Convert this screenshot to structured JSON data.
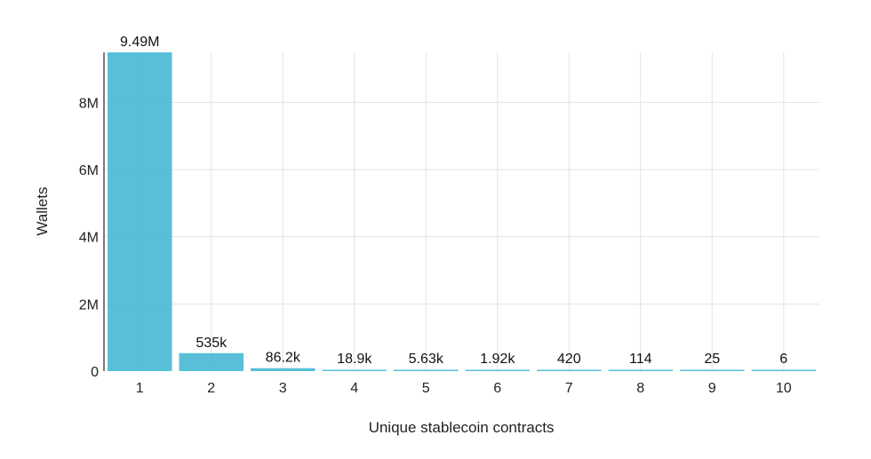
{
  "chart_data": {
    "type": "bar",
    "title": "",
    "xlabel": "Unique stablecoin contracts",
    "ylabel": "Wallets",
    "categories": [
      "1",
      "2",
      "3",
      "4",
      "5",
      "6",
      "7",
      "8",
      "9",
      "10"
    ],
    "values": [
      9490000,
      535000,
      86200,
      18900,
      5630,
      1920,
      420,
      114,
      25,
      6
    ],
    "data_labels": [
      "9.49M",
      "535k",
      "86.2k",
      "18.9k",
      "5.63k",
      "1.92k",
      "420",
      "114",
      "25",
      "6"
    ],
    "ylim": [
      0,
      9490000
    ],
    "yticks": [
      0,
      2000000,
      4000000,
      6000000,
      8000000
    ],
    "ytick_labels": [
      "0",
      "2M",
      "4M",
      "6M",
      "8M"
    ],
    "grid": true,
    "legend": "none",
    "bar_color": "#4bbad6"
  }
}
